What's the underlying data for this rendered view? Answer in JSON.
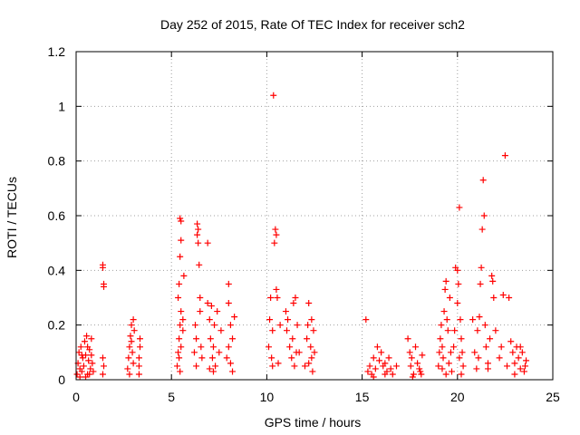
{
  "chart_data": {
    "type": "scatter",
    "title": "Day 252 of 2015, Rate Of TEC Index for receiver sch2",
    "xlabel": "GPS time / hours",
    "ylabel": "ROTI / TECUs",
    "xlim": [
      0,
      25
    ],
    "ylim": [
      0,
      1.2
    ],
    "x_ticks": [
      0,
      5,
      10,
      15,
      20,
      25
    ],
    "y_ticks": [
      0,
      0.2,
      0.4,
      0.6,
      0.8,
      1,
      1.2
    ],
    "x_tick_labels": [
      "0",
      "5",
      "10",
      "15",
      "20",
      "25"
    ],
    "y_tick_labels": [
      "0",
      "0.2",
      "0.4",
      "0.6",
      "0.8",
      "1",
      "1.2"
    ],
    "grid": true,
    "legend": "none",
    "marker": "+",
    "color": "#ff0000",
    "series": [
      {
        "name": "sch2",
        "points": [
          [
            0.05,
            0.02
          ],
          [
            0.1,
            0.06
          ],
          [
            0.15,
            0.1
          ],
          [
            0.2,
            0.04
          ],
          [
            0.25,
            0.12
          ],
          [
            0.3,
            0.03
          ],
          [
            0.35,
            0.08
          ],
          [
            0.4,
            0.05
          ],
          [
            0.45,
            0.14
          ],
          [
            0.5,
            0.09
          ],
          [
            0.55,
            0.16
          ],
          [
            0.6,
            0.02
          ],
          [
            0.65,
            0.07
          ],
          [
            0.7,
            0.11
          ],
          [
            0.75,
            0.04
          ],
          [
            0.8,
            0.15
          ],
          [
            0.85,
            0.06
          ],
          [
            0.9,
            0.03
          ],
          [
            0.2,
            0.01
          ],
          [
            0.5,
            0.01
          ],
          [
            0.7,
            0.02
          ],
          [
            0.3,
            0.09
          ],
          [
            0.6,
            0.12
          ],
          [
            0.8,
            0.09
          ],
          [
            1.4,
            0.42
          ],
          [
            1.4,
            0.41
          ],
          [
            1.45,
            0.35
          ],
          [
            1.45,
            0.34
          ],
          [
            1.4,
            0.08
          ],
          [
            1.45,
            0.05
          ],
          [
            1.4,
            0.02
          ],
          [
            2.7,
            0.04
          ],
          [
            2.75,
            0.08
          ],
          [
            2.8,
            0.12
          ],
          [
            2.85,
            0.16
          ],
          [
            2.9,
            0.2
          ],
          [
            2.95,
            0.1
          ],
          [
            3.0,
            0.06
          ],
          [
            3.05,
            0.18
          ],
          [
            2.8,
            0.02
          ],
          [
            2.9,
            0.14
          ],
          [
            3.0,
            0.22
          ],
          [
            3.3,
            0.02
          ],
          [
            3.3,
            0.08
          ],
          [
            3.35,
            0.12
          ],
          [
            3.3,
            0.05
          ],
          [
            3.35,
            0.15
          ],
          [
            5.3,
            0.05
          ],
          [
            5.35,
            0.1
          ],
          [
            5.4,
            0.15
          ],
          [
            5.45,
            0.2
          ],
          [
            5.5,
            0.25
          ],
          [
            5.35,
            0.3
          ],
          [
            5.4,
            0.35
          ],
          [
            5.45,
            0.45
          ],
          [
            5.5,
            0.51
          ],
          [
            5.45,
            0.59
          ],
          [
            5.5,
            0.58
          ],
          [
            5.4,
            0.08
          ],
          [
            5.45,
            0.03
          ],
          [
            5.5,
            0.12
          ],
          [
            5.6,
            0.18
          ],
          [
            5.65,
            0.38
          ],
          [
            5.6,
            0.22
          ],
          [
            6.2,
            0.1
          ],
          [
            6.25,
            0.2
          ],
          [
            6.3,
            0.15
          ],
          [
            6.35,
            0.57
          ],
          [
            6.4,
            0.55
          ],
          [
            6.35,
            0.53
          ],
          [
            6.4,
            0.5
          ],
          [
            6.45,
            0.42
          ],
          [
            6.5,
            0.3
          ],
          [
            6.55,
            0.12
          ],
          [
            6.6,
            0.08
          ],
          [
            6.5,
            0.25
          ],
          [
            6.3,
            0.05
          ],
          [
            6.9,
            0.5
          ],
          [
            6.9,
            0.28
          ],
          [
            7.0,
            0.22
          ],
          [
            7.05,
            0.15
          ],
          [
            7.1,
            0.27
          ],
          [
            7.15,
            0.08
          ],
          [
            7.2,
            0.12
          ],
          [
            7.25,
            0.2
          ],
          [
            7.3,
            0.05
          ],
          [
            7.4,
            0.25
          ],
          [
            7.5,
            0.1
          ],
          [
            7.6,
            0.18
          ],
          [
            7.0,
            0.04
          ],
          [
            7.2,
            0.03
          ],
          [
            8.0,
            0.35
          ],
          [
            8.0,
            0.28
          ],
          [
            8.1,
            0.2
          ],
          [
            8.2,
            0.15
          ],
          [
            8.0,
            0.12
          ],
          [
            8.3,
            0.23
          ],
          [
            8.1,
            0.06
          ],
          [
            8.2,
            0.03
          ],
          [
            7.9,
            0.08
          ],
          [
            10.1,
            0.12
          ],
          [
            10.15,
            0.22
          ],
          [
            10.2,
            0.3
          ],
          [
            10.25,
            0.08
          ],
          [
            10.3,
            0.18
          ],
          [
            10.35,
            1.04
          ],
          [
            10.4,
            0.5
          ],
          [
            10.45,
            0.55
          ],
          [
            10.5,
            0.53
          ],
          [
            10.55,
            0.3
          ],
          [
            10.6,
            0.06
          ],
          [
            10.7,
            0.2
          ],
          [
            10.5,
            0.33
          ],
          [
            10.3,
            0.05
          ],
          [
            11.0,
            0.25
          ],
          [
            11.05,
            0.18
          ],
          [
            11.1,
            0.22
          ],
          [
            11.2,
            0.12
          ],
          [
            11.3,
            0.08
          ],
          [
            11.4,
            0.28
          ],
          [
            11.5,
            0.3
          ],
          [
            11.6,
            0.2
          ],
          [
            11.45,
            0.05
          ],
          [
            11.55,
            0.1
          ],
          [
            11.35,
            0.15
          ],
          [
            11.7,
            0.1
          ],
          [
            12.0,
            0.05
          ],
          [
            12.1,
            0.15
          ],
          [
            12.15,
            0.2
          ],
          [
            12.2,
            0.28
          ],
          [
            12.3,
            0.12
          ],
          [
            12.35,
            0.08
          ],
          [
            12.4,
            0.03
          ],
          [
            12.45,
            0.18
          ],
          [
            12.5,
            0.1
          ],
          [
            12.2,
            0.06
          ],
          [
            12.35,
            0.22
          ],
          [
            15.2,
            0.22
          ],
          [
            15.3,
            0.03
          ],
          [
            15.4,
            0.05
          ],
          [
            15.5,
            0.02
          ],
          [
            15.6,
            0.08
          ],
          [
            15.7,
            0.04
          ],
          [
            15.8,
            0.12
          ],
          [
            15.9,
            0.07
          ],
          [
            16.0,
            0.1
          ],
          [
            16.1,
            0.05
          ],
          [
            16.2,
            0.06
          ],
          [
            16.3,
            0.03
          ],
          [
            16.4,
            0.08
          ],
          [
            16.5,
            0.04
          ],
          [
            16.6,
            0.02
          ],
          [
            16.8,
            0.05
          ],
          [
            15.6,
            0.01
          ],
          [
            16.2,
            0.02
          ],
          [
            17.4,
            0.15
          ],
          [
            17.5,
            0.1
          ],
          [
            17.55,
            0.05
          ],
          [
            17.6,
            0.08
          ],
          [
            17.7,
            0.02
          ],
          [
            17.8,
            0.12
          ],
          [
            17.9,
            0.06
          ],
          [
            18.0,
            0.04
          ],
          [
            18.1,
            0.02
          ],
          [
            18.15,
            0.09
          ],
          [
            17.65,
            0.01
          ],
          [
            18.05,
            0.03
          ],
          [
            19.0,
            0.05
          ],
          [
            19.05,
            0.1
          ],
          [
            19.1,
            0.15
          ],
          [
            19.15,
            0.2
          ],
          [
            19.2,
            0.12
          ],
          [
            19.25,
            0.08
          ],
          [
            19.3,
            0.25
          ],
          [
            19.35,
            0.33
          ],
          [
            19.4,
            0.36
          ],
          [
            19.45,
            0.22
          ],
          [
            19.5,
            0.18
          ],
          [
            19.55,
            0.06
          ],
          [
            19.6,
            0.3
          ],
          [
            19.65,
            0.1
          ],
          [
            19.7,
            0.03
          ],
          [
            19.2,
            0.04
          ],
          [
            19.4,
            0.02
          ],
          [
            19.8,
            0.12
          ],
          [
            19.85,
            0.18
          ],
          [
            19.9,
            0.41
          ],
          [
            20.0,
            0.4
          ],
          [
            20.05,
            0.35
          ],
          [
            20.1,
            0.63
          ],
          [
            20.15,
            0.22
          ],
          [
            20.2,
            0.15
          ],
          [
            20.25,
            0.1
          ],
          [
            20.3,
            0.05
          ],
          [
            20.0,
            0.28
          ],
          [
            20.1,
            0.08
          ],
          [
            20.2,
            0.02
          ],
          [
            20.8,
            0.22
          ],
          [
            20.9,
            0.1
          ],
          [
            21.0,
            0.04
          ],
          [
            21.05,
            0.18
          ],
          [
            21.1,
            0.08
          ],
          [
            21.15,
            0.23
          ],
          [
            21.2,
            0.35
          ],
          [
            21.25,
            0.41
          ],
          [
            21.3,
            0.55
          ],
          [
            21.35,
            0.73
          ],
          [
            21.4,
            0.6
          ],
          [
            21.45,
            0.2
          ],
          [
            21.5,
            0.12
          ],
          [
            21.6,
            0.06
          ],
          [
            21.7,
            0.15
          ],
          [
            21.8,
            0.38
          ],
          [
            21.85,
            0.36
          ],
          [
            21.9,
            0.3
          ],
          [
            22.0,
            0.18
          ],
          [
            21.6,
            0.04
          ],
          [
            22.2,
            0.08
          ],
          [
            22.3,
            0.12
          ],
          [
            22.4,
            0.31
          ],
          [
            22.5,
            0.82
          ],
          [
            22.6,
            0.05
          ],
          [
            22.7,
            0.3
          ],
          [
            22.8,
            0.14
          ],
          [
            22.9,
            0.1
          ],
          [
            23.0,
            0.06
          ],
          [
            23.1,
            0.12
          ],
          [
            23.2,
            0.08
          ],
          [
            23.3,
            0.04
          ],
          [
            23.4,
            0.1
          ],
          [
            23.5,
            0.03
          ],
          [
            23.6,
            0.07
          ],
          [
            23.0,
            0.02
          ],
          [
            23.3,
            0.12
          ],
          [
            23.55,
            0.05
          ]
        ]
      }
    ]
  }
}
